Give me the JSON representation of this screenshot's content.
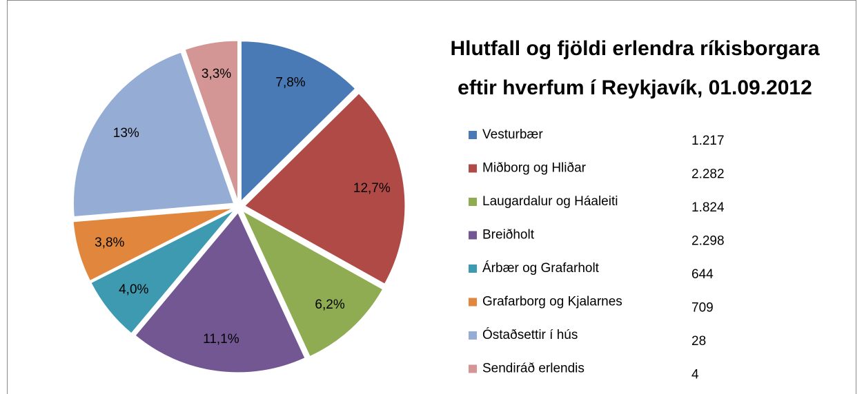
{
  "chart_data": {
    "type": "pie",
    "title": [
      "Hlutfall og fjöldi  erlendra ríkisborgara",
      "eftir hverfum í Reykjavík, 01.09.2012"
    ],
    "categories": [
      "Vesturbær",
      "Miðborg og Hliðar",
      "Laugardalur og Háaleiti",
      "Breiðholt",
      "Árbær og Grafarholt",
      "Grafarborg og Kjalarnes",
      "Óstaðsettir í hús",
      "Sendiráð erlendis"
    ],
    "values": [
      7.8,
      12.7,
      6.2,
      11.1,
      4.0,
      3.8,
      13,
      3.3
    ],
    "value_labels": [
      "7,8%",
      "12,7%",
      "6,2%",
      "11,1%",
      "4,0%",
      "3,8%",
      "13%",
      "3,3%"
    ],
    "legend_values": [
      "1.217",
      "2.282",
      "1.824",
      "2.298",
      "644",
      "709",
      "28",
      "4"
    ],
    "colors": [
      "#4a7ab5",
      "#b04a47",
      "#8fac52",
      "#735793",
      "#3e9ab0",
      "#e0873d",
      "#95add4",
      "#d49595"
    ],
    "legend": "right"
  }
}
